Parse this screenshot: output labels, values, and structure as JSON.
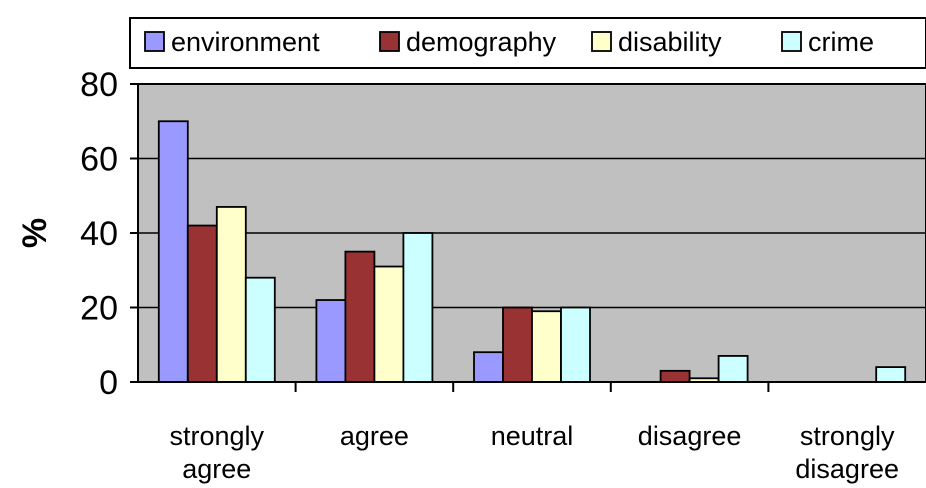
{
  "chart_data": {
    "type": "bar",
    "title": "",
    "xlabel": "",
    "ylabel": "%",
    "ylim": [
      0,
      80
    ],
    "yticks": [
      "0",
      "20",
      "40",
      "60",
      "80"
    ],
    "grid": true,
    "legend_position": "top",
    "categories": [
      "strongly agree",
      "agree",
      "neutral",
      "disagree",
      "strongly disagree"
    ],
    "category_lines": [
      [
        "strongly",
        "agree"
      ],
      [
        "agree"
      ],
      [
        "neutral"
      ],
      [
        "disagree"
      ],
      [
        "strongly",
        "disagree"
      ]
    ],
    "series": [
      {
        "name": "environment",
        "color": "#9999ff",
        "values": [
          70,
          22,
          8,
          0,
          0
        ]
      },
      {
        "name": "demography",
        "color": "#993333",
        "values": [
          42,
          35,
          20,
          3,
          0
        ]
      },
      {
        "name": "disability",
        "color": "#ffffcc",
        "values": [
          47,
          31,
          19,
          1,
          0
        ]
      },
      {
        "name": "crime",
        "color": "#ccffff",
        "values": [
          28,
          40,
          20,
          7,
          4
        ]
      }
    ],
    "plot_background": "#c0c0c0"
  }
}
